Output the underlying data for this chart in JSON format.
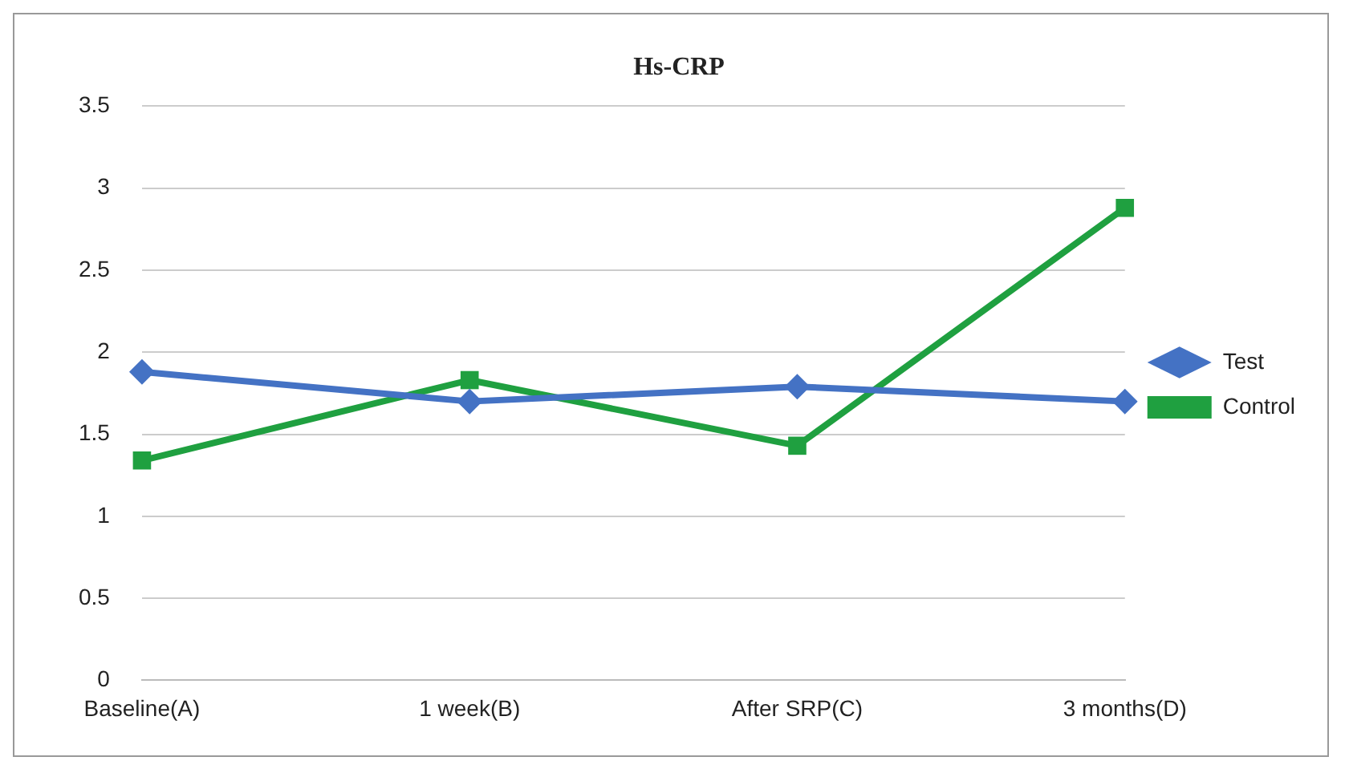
{
  "chart_data": {
    "type": "line",
    "title": "Hs-CRP",
    "categories": [
      "Baseline(A)",
      "1 week(B)",
      "After SRP(C)",
      "3 months(D)"
    ],
    "series": [
      {
        "name": "Test",
        "color": "#4472c4",
        "marker": "diamond",
        "values": [
          1.88,
          1.7,
          1.79,
          1.7
        ]
      },
      {
        "name": "Control",
        "color": "#1fa040",
        "marker": "square",
        "values": [
          1.34,
          1.83,
          1.43,
          2.88
        ]
      }
    ],
    "ylim": [
      0,
      3.5
    ],
    "yticks": [
      0,
      0.5,
      1,
      1.5,
      2,
      2.5,
      3,
      3.5
    ],
    "grid": "y",
    "legend": "right"
  }
}
